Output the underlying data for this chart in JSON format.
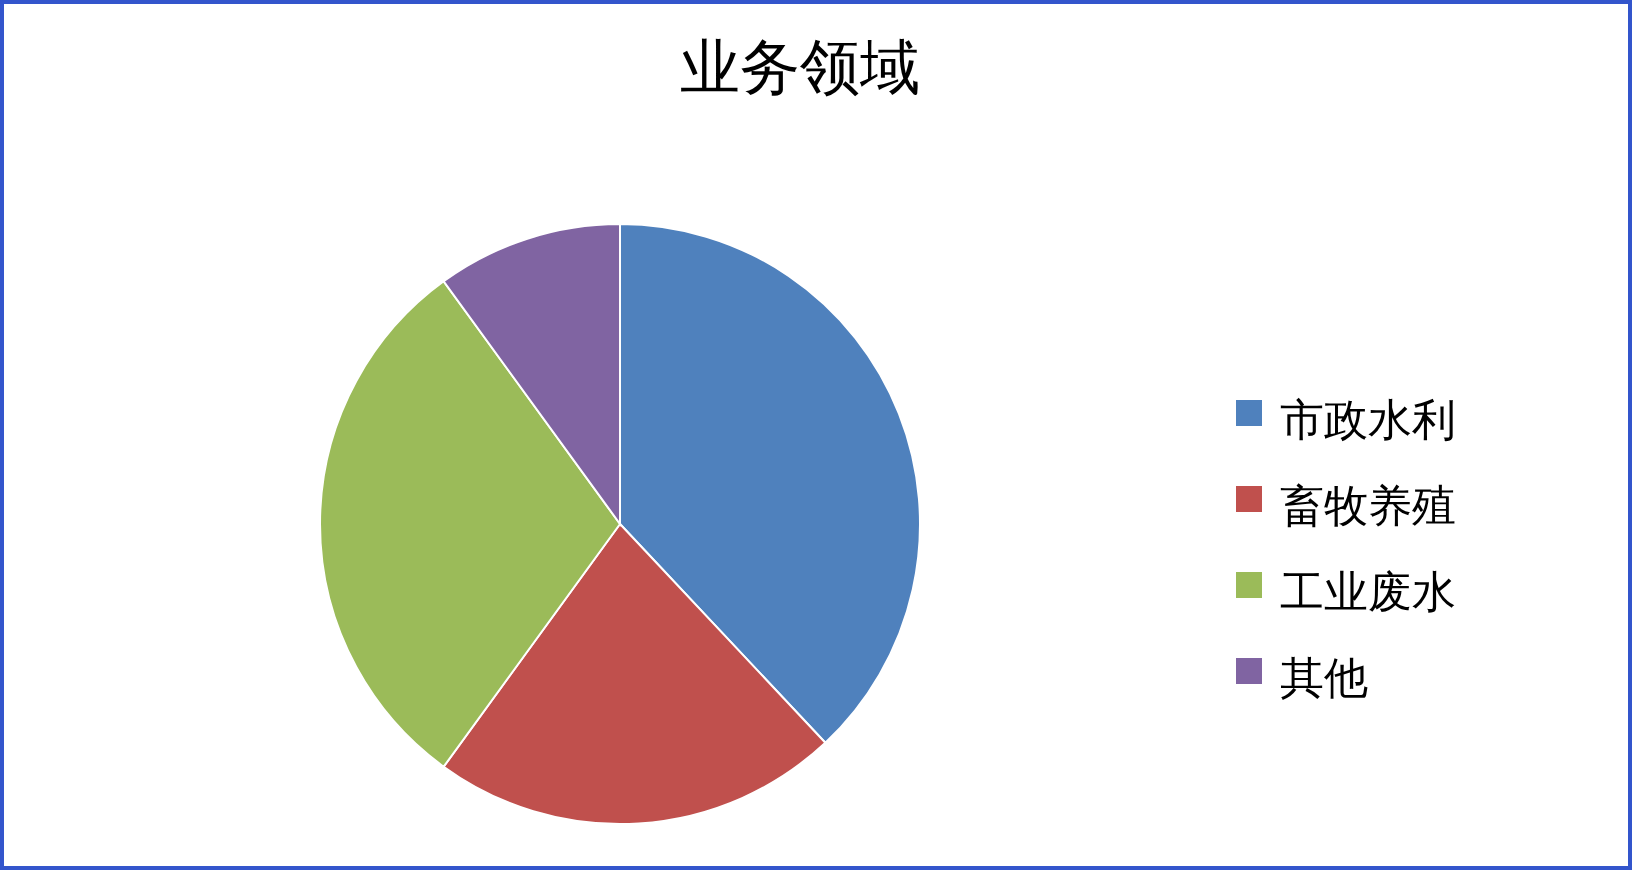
{
  "chart_data": {
    "type": "pie",
    "title": "业务领域",
    "categories": [
      "市政水利",
      "畜牧养殖",
      "工业废水",
      "其他"
    ],
    "values": [
      38,
      22,
      30,
      10
    ],
    "colors": [
      "#4f81bd",
      "#c0504d",
      "#9bbb59",
      "#8064a2"
    ],
    "legend": "right"
  }
}
